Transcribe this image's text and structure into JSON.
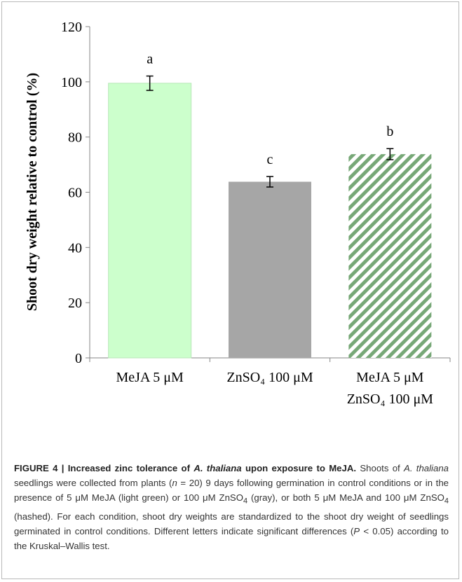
{
  "chart_data": {
    "type": "bar",
    "ylabel": "Shoot dry weight relative to control (%)",
    "xlabel": "",
    "ylim": [
      0,
      120
    ],
    "yticks": [
      0,
      20,
      40,
      60,
      80,
      100,
      120
    ],
    "grid": false,
    "categories": [
      {
        "line1": "MeJA 5 μM",
        "line2": ""
      },
      {
        "line1": "ZnSO₄ 100 μM",
        "line2": ""
      },
      {
        "line1": "MeJA 5 μM",
        "line2": "ZnSO₄ 100 μM"
      }
    ],
    "values": [
      99.5,
      63.8,
      73.8
    ],
    "errors": [
      2.6,
      1.9,
      2.0
    ],
    "significance_letters": [
      "a",
      "c",
      "b"
    ],
    "fills": [
      "light green",
      "gray",
      "hashed"
    ],
    "colors": {
      "light_green": "#ccffcc",
      "gray": "#a6a6a6",
      "hatch": "#77a877",
      "axis": "#868686"
    }
  },
  "caption": {
    "figure_label": "FIGURE 4 | Increased zinc tolerance of ",
    "species_bold": "A. thaliana",
    "title_rest": " upon exposure to MeJA.",
    "text1": " Shoots of ",
    "species": "A. thaliana",
    "text2": " seedlings were collected from plants (",
    "n": "n",
    "text3": " = 20) 9 days following germination in control conditions or in the presence of 5 μM MeJA (light green) or 100 μM ZnSO",
    "sub4": "4",
    "text4": " (gray), or both 5 μM MeJA and 100 μM ZnSO",
    "sub4b": "4",
    "text5": " (hashed). For each condition, shoot dry weights are standardized to the shoot dry weight of seedlings germinated in control conditions. Different letters indicate significant differences (",
    "p": "P",
    "text6": " < 0.05) according to the Kruskal–Wallis test."
  }
}
